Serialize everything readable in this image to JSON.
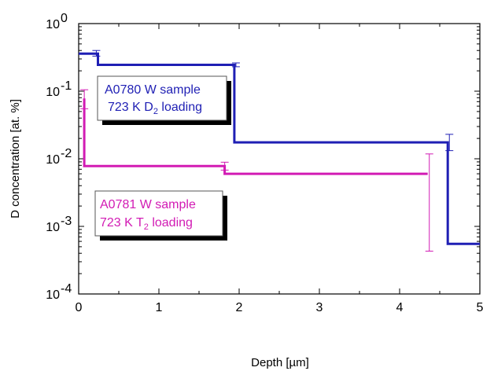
{
  "chart_data": {
    "type": "line",
    "subtype": "step",
    "xlabel": "Depth [µm]",
    "ylabel": "D concentration [at. %]",
    "xlim": [
      0,
      5
    ],
    "ylim": [
      0.0001,
      1
    ],
    "yscale": "log",
    "xticks": [
      "0",
      "1",
      "2",
      "3",
      "4",
      "5"
    ],
    "yticks": [
      {
        "base": "10",
        "exp": "0",
        "value": 1
      },
      {
        "base": "10",
        "exp": "-1",
        "value": 0.1
      },
      {
        "base": "10",
        "exp": "-2",
        "value": 0.01
      },
      {
        "base": "10",
        "exp": "-3",
        "value": 0.001
      },
      {
        "base": "10",
        "exp": "-4",
        "value": 0.0001
      }
    ],
    "grid": false,
    "series": [
      {
        "color": "#1f1fb4",
        "steps": [
          [
            0,
            0.36
          ],
          [
            0.24,
            0.36
          ],
          [
            0.24,
            0.245
          ],
          [
            1.94,
            0.245
          ],
          [
            1.94,
            0.0175
          ],
          [
            4.6,
            0.0175
          ],
          [
            4.6,
            0.00055
          ],
          [
            5.0,
            0.00055
          ]
        ],
        "error_bars": [
          {
            "x": 0.22,
            "y": 0.36,
            "low": 0.33,
            "high": 0.4
          },
          {
            "x": 1.96,
            "y": 0.245,
            "low": 0.23,
            "high": 0.262
          },
          {
            "x": 4.62,
            "y": 0.0175,
            "low": 0.0132,
            "high": 0.023
          }
        ]
      },
      {
        "color": "#d21bb4",
        "steps": [
          [
            0.07,
            0.078
          ],
          [
            0.07,
            0.0078
          ],
          [
            1.82,
            0.0078
          ],
          [
            1.82,
            0.006
          ],
          [
            4.35,
            0.006
          ]
        ],
        "error_bars": [
          {
            "x": 0.07,
            "y": 0.078,
            "low": 0.055,
            "high": 0.105
          },
          {
            "x": 1.82,
            "y": 0.0078,
            "low": 0.0068,
            "high": 0.0089
          },
          {
            "x": 4.37,
            "y": 0.006,
            "low": 0.00043,
            "high": 0.0118
          }
        ]
      }
    ],
    "annotations": [
      {
        "line1": "A0780 W sample",
        "line2_pre": "723 K D",
        "line2_sub": "2",
        "line2_post": " loading",
        "color": "#1f1fb4"
      },
      {
        "line1": "A0781 W sample",
        "line2_pre": "723 K T",
        "line2_sub": "2",
        "line2_post": " loading",
        "color": "#d21bb4"
      }
    ]
  }
}
